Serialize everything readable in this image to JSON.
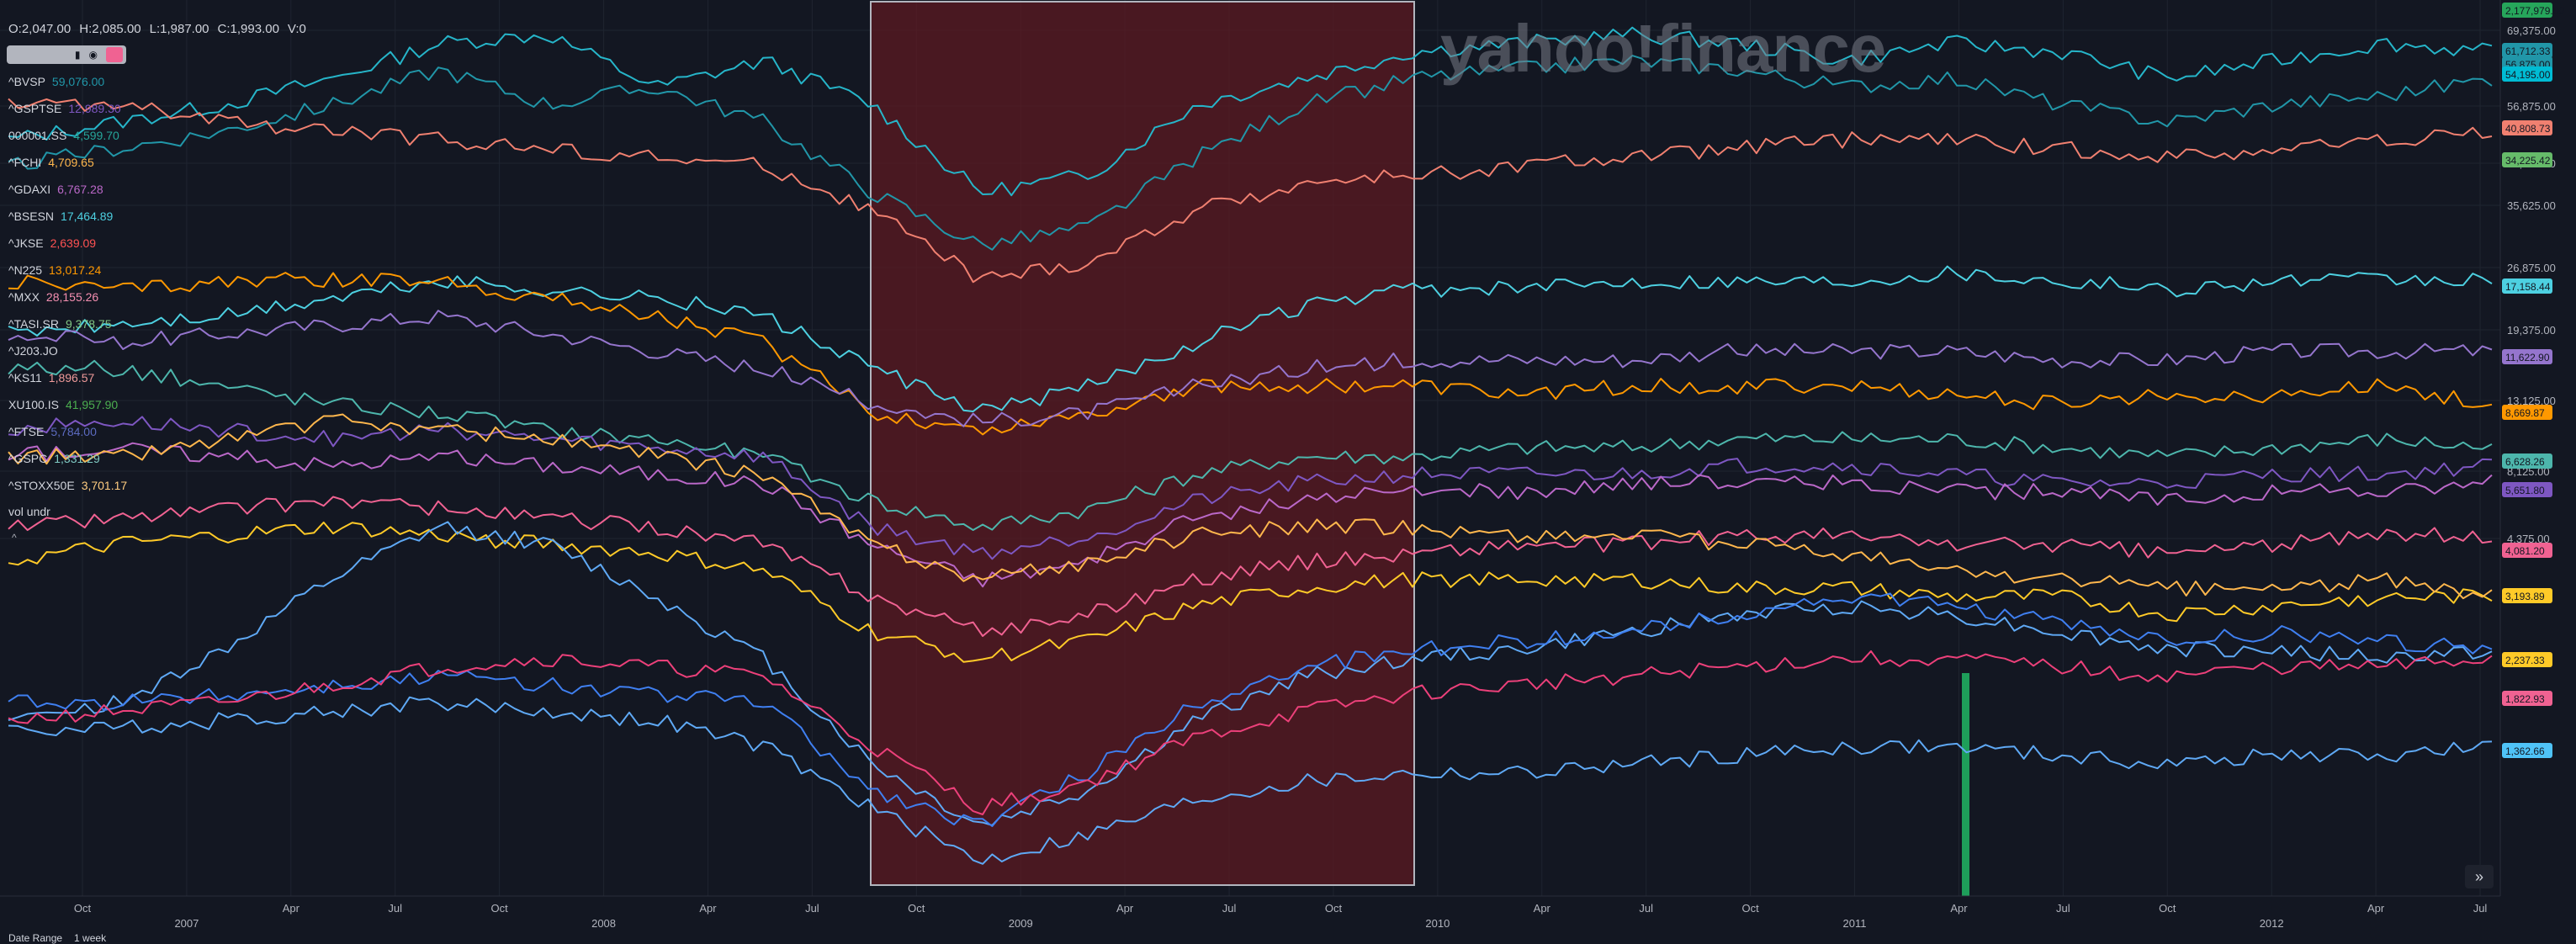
{
  "ohlc": {
    "open": "O:2,047.00",
    "high": "H:2,085.00",
    "low": "L:1,987.00",
    "close": "C:1,993.00",
    "volume": "V:0"
  },
  "watermark": "yahoo!finance",
  "legend": [
    {
      "symbol": "^BVSP",
      "value": "59,076.00",
      "color": "#2196a8"
    },
    {
      "symbol": "^GSPTSE",
      "value": "12,989.30",
      "color": "#7e57c2"
    },
    {
      "symbol": "000001.SS",
      "value": "4,599.70",
      "color": "#26a69a"
    },
    {
      "symbol": "^FCHI",
      "value": "4,709.65",
      "color": "#ffb74d"
    },
    {
      "symbol": "^GDAXI",
      "value": "6,767.28",
      "color": "#ba68c8"
    },
    {
      "symbol": "^BSESN",
      "value": "17,464.89",
      "color": "#4dd0e1"
    },
    {
      "symbol": "^JKSE",
      "value": "2,639.09",
      "color": "#ff5252"
    },
    {
      "symbol": "^N225",
      "value": "13,017.24",
      "color": "#ff9800"
    },
    {
      "symbol": "^MXX",
      "value": "28,155.26",
      "color": "#f48fb1"
    },
    {
      "symbol": "^TASI.SR",
      "value": "9,378.75",
      "color": "#81c784"
    },
    {
      "symbol": "^J203.JO",
      "value": "",
      "color": "#9c27b0"
    },
    {
      "symbol": "^KS11",
      "value": "1,896.57",
      "color": "#ef9a9a"
    },
    {
      "symbol": "XU100.IS",
      "value": "41,957.90",
      "color": "#4caf50"
    },
    {
      "symbol": "^FTSE",
      "value": "5,784.00",
      "color": "#5c6bc0"
    },
    {
      "symbol": "^GSPC",
      "value": "1,331.29",
      "color": "#80cbc4"
    },
    {
      "symbol": "^STOXX50E",
      "value": "3,701.17",
      "color": "#ffcc80"
    }
  ],
  "vol_label": "vol undr",
  "footer": {
    "date_range": "Date Range",
    "interval": "1 week"
  },
  "chart_data": {
    "type": "line",
    "x_ticks": [
      "Oct",
      "2007",
      "Apr",
      "Jul",
      "Oct",
      "2008",
      "Apr",
      "Jul",
      "Oct",
      "2009",
      "Apr",
      "Jul",
      "Oct",
      "2010",
      "Apr",
      "Jul",
      "Oct",
      "2011",
      "Apr",
      "Jul",
      "Oct",
      "2012",
      "Apr",
      "Jul"
    ],
    "y_ticks": [
      "69,375.00",
      "56,875.00",
      "45,625.00",
      "35,625.00",
      "26,875.00",
      "19,375.00",
      "13,125.00",
      "8,125.00",
      "4,375.00"
    ],
    "highlight_region": {
      "from": "Sep 2008",
      "to": "Nov 2009",
      "color": "#5c1a22"
    },
    "volume_bar": {
      "at": "Apr 2011",
      "color": "#1e9e5a"
    },
    "price_badges": [
      {
        "label": "2,177,979.00",
        "color": "#26a65b"
      },
      {
        "label": "61,712.33",
        "color": "#2196a8"
      },
      {
        "label": "56,875.00",
        "color": "#2196a8"
      },
      {
        "label": "54,195.00",
        "color": "#00bcd4"
      },
      {
        "label": "40,808.73",
        "color": "#f08070"
      },
      {
        "label": "34,225.42",
        "color": "#66bb6a"
      },
      {
        "label": "17,158.44",
        "color": "#4dd0e1"
      },
      {
        "label": "11,622.90",
        "color": "#9575cd"
      },
      {
        "label": "8,669.87",
        "color": "#ff9800"
      },
      {
        "label": "6,628.26",
        "color": "#4db6ac"
      },
      {
        "label": "5,651.80",
        "color": "#7e57c2"
      },
      {
        "label": "4,081.20",
        "color": "#f06292"
      },
      {
        "label": "3,193.89",
        "color": "#ffca28"
      },
      {
        "label": "2,237.33",
        "color": "#ffca28"
      },
      {
        "label": "1,822.93",
        "color": "#f06292"
      },
      {
        "label": "1,362.66",
        "color": "#4fc3f7"
      }
    ],
    "series": [
      {
        "name": "^BVSP",
        "color": "#26b5c9",
        "values": [
          0.86,
          0.88,
          0.9,
          0.93,
          0.97,
          0.98,
          0.92,
          0.95,
          0.9,
          0.8,
          0.82,
          0.9,
          0.93,
          0.96,
          0.97,
          0.98,
          0.97,
          0.95,
          0.97,
          0.96,
          0.93,
          0.95,
          0.97,
          0.96
        ]
      },
      {
        "name": "^GSPTSE",
        "color": "#2196a8",
        "values": [
          0.83,
          0.85,
          0.87,
          0.9,
          0.94,
          0.9,
          0.92,
          0.88,
          0.8,
          0.74,
          0.76,
          0.84,
          0.9,
          0.93,
          0.94,
          0.95,
          0.94,
          0.92,
          0.93,
          0.9,
          0.88,
          0.9,
          0.91,
          0.93
        ]
      },
      {
        "name": "000001.SS",
        "color": "#f08070",
        "values": [
          0.9,
          0.9,
          0.88,
          0.87,
          0.86,
          0.85,
          0.84,
          0.83,
          0.78,
          0.7,
          0.72,
          0.78,
          0.81,
          0.82,
          0.83,
          0.84,
          0.85,
          0.86,
          0.86,
          0.85,
          0.84,
          0.85,
          0.86,
          0.87
        ]
      },
      {
        "name": "^FCHI",
        "color": "#4dd0e1",
        "values": [
          0.64,
          0.65,
          0.66,
          0.68,
          0.7,
          0.69,
          0.68,
          0.66,
          0.6,
          0.55,
          0.58,
          0.63,
          0.67,
          0.69,
          0.69,
          0.7,
          0.7,
          0.7,
          0.71,
          0.7,
          0.69,
          0.7,
          0.7,
          0.7
        ]
      },
      {
        "name": "^GDAXI",
        "color": "#ff9800",
        "values": [
          0.7,
          0.69,
          0.7,
          0.7,
          0.7,
          0.68,
          0.66,
          0.63,
          0.55,
          0.53,
          0.55,
          0.58,
          0.58,
          0.58,
          0.57,
          0.58,
          0.58,
          0.58,
          0.57,
          0.56,
          0.57,
          0.57,
          0.58,
          0.56
        ]
      },
      {
        "name": "^BSESN",
        "color": "#9575cd",
        "values": [
          0.64,
          0.63,
          0.64,
          0.65,
          0.66,
          0.64,
          0.62,
          0.6,
          0.56,
          0.54,
          0.55,
          0.58,
          0.6,
          0.61,
          0.61,
          0.61,
          0.62,
          0.62,
          0.62,
          0.61,
          0.61,
          0.62,
          0.62,
          0.62
        ]
      },
      {
        "name": "^JKSE",
        "color": "#4db6ac",
        "values": [
          0.6,
          0.6,
          0.58,
          0.56,
          0.55,
          0.53,
          0.52,
          0.5,
          0.45,
          0.42,
          0.44,
          0.48,
          0.5,
          0.5,
          0.51,
          0.51,
          0.52,
          0.52,
          0.52,
          0.51,
          0.5,
          0.51,
          0.52,
          0.51
        ]
      },
      {
        "name": "^N225",
        "color": "#7e57c2",
        "values": [
          0.53,
          0.54,
          0.53,
          0.52,
          0.53,
          0.52,
          0.51,
          0.5,
          0.42,
          0.39,
          0.41,
          0.45,
          0.47,
          0.48,
          0.48,
          0.48,
          0.49,
          0.49,
          0.48,
          0.47,
          0.47,
          0.48,
          0.48,
          0.49
        ]
      },
      {
        "name": "^MXX",
        "color": "#ba68c8",
        "values": [
          0.5,
          0.51,
          0.5,
          0.49,
          0.5,
          0.49,
          0.48,
          0.47,
          0.4,
          0.36,
          0.38,
          0.43,
          0.45,
          0.46,
          0.46,
          0.47,
          0.47,
          0.47,
          0.46,
          0.46,
          0.45,
          0.46,
          0.46,
          0.47
        ]
      },
      {
        "name": "^TASI.SR",
        "color": "#f06292",
        "values": [
          0.42,
          0.43,
          0.44,
          0.45,
          0.44,
          0.43,
          0.42,
          0.4,
          0.34,
          0.3,
          0.32,
          0.36,
          0.38,
          0.39,
          0.4,
          0.4,
          0.41,
          0.41,
          0.4,
          0.4,
          0.39,
          0.4,
          0.41,
          0.41
        ]
      },
      {
        "name": "^J203.JO",
        "color": "#ffca28",
        "values": [
          0.38,
          0.4,
          0.41,
          0.42,
          0.41,
          0.4,
          0.39,
          0.37,
          0.3,
          0.27,
          0.29,
          0.33,
          0.35,
          0.36,
          0.36,
          0.36,
          0.35,
          0.35,
          0.34,
          0.34,
          0.32,
          0.33,
          0.34,
          0.34
        ]
      },
      {
        "name": "^KS11",
        "color": "#5fa9f5",
        "values": [
          0.2,
          0.22,
          0.28,
          0.36,
          0.42,
          0.4,
          0.34,
          0.27,
          0.15,
          0.08,
          0.12,
          0.2,
          0.25,
          0.27,
          0.28,
          0.3,
          0.32,
          0.33,
          0.32,
          0.3,
          0.28,
          0.28,
          0.27,
          0.28
        ]
      },
      {
        "name": "XU100.IS",
        "color": "#3f7ff0",
        "values": [
          0.22,
          0.22,
          0.23,
          0.24,
          0.25,
          0.24,
          0.23,
          0.22,
          0.12,
          0.08,
          0.14,
          0.22,
          0.26,
          0.28,
          0.29,
          0.3,
          0.32,
          0.34,
          0.33,
          0.31,
          0.29,
          0.3,
          0.29,
          0.28
        ]
      },
      {
        "name": "^FTSE",
        "color": "#ec407a",
        "values": [
          0.2,
          0.21,
          0.22,
          0.24,
          0.26,
          0.27,
          0.26,
          0.25,
          0.17,
          0.1,
          0.13,
          0.18,
          0.21,
          0.23,
          0.24,
          0.25,
          0.26,
          0.27,
          0.27,
          0.26,
          0.25,
          0.26,
          0.26,
          0.27
        ]
      },
      {
        "name": "^GSPC",
        "color": "#5fa9f5",
        "values": [
          0.19,
          0.19,
          0.2,
          0.21,
          0.22,
          0.21,
          0.2,
          0.17,
          0.1,
          0.04,
          0.07,
          0.11,
          0.13,
          0.14,
          0.14,
          0.15,
          0.16,
          0.17,
          0.17,
          0.16,
          0.15,
          0.16,
          0.16,
          0.17
        ]
      },
      {
        "name": "^STOXX50E",
        "color": "#ffb74d",
        "values": [
          0.5,
          0.5,
          0.52,
          0.54,
          0.53,
          0.52,
          0.5,
          0.48,
          0.4,
          0.36,
          0.38,
          0.41,
          0.42,
          0.42,
          0.41,
          0.41,
          0.4,
          0.39,
          0.37,
          0.36,
          0.35,
          0.35,
          0.36,
          0.34
        ]
      }
    ]
  }
}
